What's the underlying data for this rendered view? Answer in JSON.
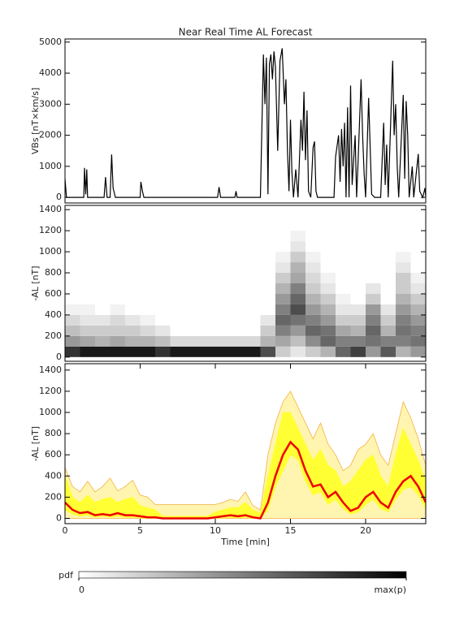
{
  "chart_data": [
    {
      "type": "line",
      "title": "Near Real Time AL Forecast",
      "ylabel": "VBs [nT×km/s]",
      "color": "#000000",
      "xlim": [
        0,
        24
      ],
      "ylim": [
        -180,
        5100
      ],
      "yticks": [
        0,
        1000,
        2000,
        3000,
        4000,
        5000
      ],
      "x": [
        0,
        0.1,
        1.25,
        1.3,
        1.38,
        1.45,
        1.5,
        2.6,
        2.7,
        2.8,
        3.0,
        3.1,
        3.2,
        3.35,
        5.0,
        5.05,
        5.15,
        5.25,
        10.15,
        10.25,
        10.35,
        11.3,
        11.38,
        11.45,
        13.0,
        13.2,
        13.3,
        13.4,
        13.5,
        13.6,
        13.7,
        13.8,
        13.9,
        14.0,
        14.15,
        14.3,
        14.45,
        14.6,
        14.7,
        14.8,
        14.9,
        15.0,
        15.1,
        15.2,
        15.35,
        15.5,
        15.7,
        15.8,
        15.9,
        16.0,
        16.1,
        16.2,
        16.35,
        16.5,
        16.6,
        16.7,
        16.8,
        17.9,
        18.0,
        18.2,
        18.3,
        18.4,
        18.5,
        18.6,
        18.7,
        18.8,
        18.9,
        19.0,
        19.1,
        19.3,
        19.4,
        19.5,
        19.7,
        19.8,
        19.9,
        20.0,
        20.2,
        20.4,
        20.6,
        21.0,
        21.2,
        21.3,
        21.4,
        21.5,
        21.8,
        21.9,
        22.0,
        22.1,
        22.2,
        22.5,
        22.6,
        22.7,
        22.8,
        22.9,
        23.1,
        23.2,
        23.5,
        23.6,
        23.8,
        23.95,
        24
      ],
      "values": [
        600,
        0,
        0,
        950,
        100,
        900,
        0,
        0,
        650,
        0,
        0,
        1380,
        300,
        0,
        0,
        500,
        200,
        0,
        0,
        330,
        0,
        0,
        200,
        0,
        0,
        4600,
        3000,
        4500,
        100,
        4300,
        4600,
        3800,
        4700,
        4200,
        1500,
        4400,
        4800,
        3000,
        3800,
        1500,
        200,
        2500,
        800,
        0,
        900,
        0,
        2500,
        1500,
        3400,
        1200,
        2800,
        200,
        0,
        1600,
        1800,
        200,
        0,
        0,
        1300,
        2000,
        500,
        2200,
        1000,
        2400,
        0,
        2900,
        0,
        3600,
        400,
        2000,
        0,
        1200,
        3800,
        2000,
        800,
        0,
        3200,
        100,
        0,
        0,
        2400,
        400,
        1700,
        0,
        4400,
        2000,
        3000,
        1000,
        0,
        3300,
        600,
        3100,
        2000,
        0,
        1000,
        0,
        1400,
        200,
        0,
        300,
        0
      ]
    },
    {
      "type": "heatmap",
      "ylabel": "-AL [nT]",
      "xlim": [
        0,
        24
      ],
      "ylim": [
        -40,
        1440
      ],
      "yticks": [
        0,
        200,
        400,
        600,
        800,
        1000,
        1200,
        1400
      ],
      "xbins": [
        0,
        1,
        2,
        3,
        4,
        5,
        6,
        7,
        8,
        9,
        10,
        11,
        12,
        13,
        14,
        15,
        16,
        17,
        18,
        19,
        20,
        21,
        22,
        23,
        24
      ],
      "ybins": [
        0,
        100,
        200,
        300,
        400,
        500,
        600,
        700,
        800,
        900,
        1000,
        1100,
        1200
      ],
      "z": [
        [
          0.8,
          0.4,
          0.25,
          0.15,
          0.05,
          0,
          0,
          0,
          0,
          0,
          0,
          0
        ],
        [
          0.9,
          0.35,
          0.2,
          0.1,
          0.05,
          0,
          0,
          0,
          0,
          0,
          0,
          0
        ],
        [
          0.9,
          0.3,
          0.2,
          0.1,
          0,
          0,
          0,
          0,
          0,
          0,
          0,
          0
        ],
        [
          0.9,
          0.35,
          0.2,
          0.15,
          0.05,
          0,
          0,
          0,
          0,
          0,
          0,
          0
        ],
        [
          0.9,
          0.3,
          0.2,
          0.1,
          0,
          0,
          0,
          0,
          0,
          0,
          0,
          0
        ],
        [
          0.9,
          0.3,
          0.15,
          0.05,
          0,
          0,
          0,
          0,
          0,
          0,
          0,
          0
        ],
        [
          0.8,
          0.25,
          0.1,
          0,
          0,
          0,
          0,
          0,
          0,
          0,
          0,
          0
        ],
        [
          0.9,
          0.15,
          0,
          0,
          0,
          0,
          0,
          0,
          0,
          0,
          0,
          0
        ],
        [
          0.9,
          0.15,
          0,
          0,
          0,
          0,
          0,
          0,
          0,
          0,
          0,
          0
        ],
        [
          0.9,
          0.15,
          0,
          0,
          0,
          0,
          0,
          0,
          0,
          0,
          0,
          0
        ],
        [
          0.9,
          0.15,
          0,
          0,
          0,
          0,
          0,
          0,
          0,
          0,
          0,
          0
        ],
        [
          0.9,
          0.15,
          0,
          0,
          0,
          0,
          0,
          0,
          0,
          0,
          0,
          0
        ],
        [
          0.9,
          0.15,
          0,
          0,
          0,
          0,
          0,
          0,
          0,
          0,
          0,
          0
        ],
        [
          0.7,
          0.3,
          0.2,
          0.1,
          0,
          0,
          0,
          0,
          0,
          0,
          0,
          0
        ],
        [
          0.2,
          0.35,
          0.5,
          0.6,
          0.5,
          0.4,
          0.3,
          0.2,
          0.1,
          0.05,
          0,
          0
        ],
        [
          0.1,
          0.25,
          0.4,
          0.55,
          0.7,
          0.6,
          0.5,
          0.35,
          0.3,
          0.2,
          0.1,
          0.05
        ],
        [
          0.2,
          0.45,
          0.6,
          0.5,
          0.4,
          0.3,
          0.2,
          0.15,
          0.1,
          0.05,
          0,
          0
        ],
        [
          0.3,
          0.6,
          0.55,
          0.4,
          0.3,
          0.2,
          0.1,
          0.05,
          0,
          0,
          0,
          0
        ],
        [
          0.6,
          0.5,
          0.35,
          0.2,
          0.1,
          0.05,
          0,
          0,
          0,
          0,
          0,
          0
        ],
        [
          0.75,
          0.5,
          0.3,
          0.2,
          0.1,
          0,
          0,
          0,
          0,
          0,
          0,
          0
        ],
        [
          0.4,
          0.55,
          0.6,
          0.5,
          0.4,
          0.2,
          0.1,
          0,
          0,
          0,
          0,
          0
        ],
        [
          0.65,
          0.5,
          0.3,
          0.2,
          0.1,
          0,
          0,
          0,
          0,
          0,
          0,
          0
        ],
        [
          0.3,
          0.5,
          0.55,
          0.5,
          0.4,
          0.3,
          0.2,
          0.2,
          0.1,
          0.05,
          0,
          0
        ],
        [
          0.4,
          0.55,
          0.5,
          0.4,
          0.3,
          0.2,
          0.1,
          0.05,
          0,
          0,
          0,
          0
        ]
      ],
      "colorbar": {
        "label": "pdf",
        "ticks": [
          0,
          {
            "value": 1,
            "label": "max(p)"
          }
        ]
      }
    },
    {
      "type": "band",
      "ylabel": "-AL [nT]",
      "xlabel": "Time [min]",
      "xlim": [
        0,
        24
      ],
      "xticks": [
        0,
        5,
        10,
        15,
        20
      ],
      "ylim": [
        -50,
        1460
      ],
      "yticks": [
        0,
        200,
        400,
        600,
        800,
        1000,
        1200,
        1400
      ],
      "x": [
        0,
        0.5,
        1,
        1.5,
        2,
        2.5,
        3,
        3.5,
        4,
        4.5,
        5,
        5.5,
        6,
        6.5,
        7,
        7.5,
        8,
        8.5,
        9,
        9.5,
        10,
        10.5,
        11,
        11.5,
        12,
        12.5,
        13,
        13.5,
        14,
        14.5,
        15,
        15.5,
        16,
        16.5,
        17,
        17.5,
        18,
        18.5,
        19,
        19.5,
        20,
        20.5,
        21,
        21.5,
        22,
        22.5,
        23,
        23.5,
        24
      ],
      "bands": [
        {
          "color": "#fff5b0",
          "edge": "#f5b041",
          "lower": [
            0,
            0,
            0,
            0,
            0,
            0,
            0,
            0,
            0,
            0,
            0,
            0,
            0,
            0,
            0,
            0,
            0,
            0,
            0,
            0,
            0,
            0,
            0,
            0,
            0,
            0,
            0,
            0,
            0,
            0,
            0,
            0,
            0,
            0,
            0,
            0,
            0,
            0,
            0,
            0,
            0,
            0,
            0,
            0,
            0,
            0,
            0,
            0,
            0
          ],
          "upper": [
            480,
            300,
            250,
            350,
            250,
            300,
            380,
            260,
            300,
            360,
            220,
            200,
            130,
            130,
            130,
            130,
            130,
            130,
            130,
            130,
            130,
            150,
            180,
            160,
            250,
            120,
            80,
            600,
            900,
            1100,
            1200,
            1050,
            900,
            750,
            900,
            700,
            600,
            450,
            500,
            650,
            700,
            800,
            600,
            500,
            800,
            1100,
            950,
            750,
            500
          ]
        },
        {
          "color": "#ffff33",
          "edge": "#ffff33",
          "lower": [
            80,
            40,
            20,
            30,
            10,
            20,
            10,
            20,
            10,
            10,
            5,
            0,
            0,
            0,
            0,
            0,
            0,
            0,
            0,
            0,
            0,
            5,
            10,
            5,
            10,
            0,
            0,
            80,
            300,
            450,
            600,
            550,
            350,
            220,
            250,
            130,
            180,
            90,
            40,
            60,
            130,
            180,
            90,
            60,
            180,
            270,
            300,
            220,
            90
          ],
          "upper": [
            400,
            200,
            150,
            220,
            150,
            180,
            200,
            150,
            180,
            200,
            120,
            100,
            80,
            20,
            20,
            20,
            20,
            20,
            20,
            20,
            60,
            80,
            100,
            100,
            150,
            80,
            50,
            400,
            700,
            1000,
            1000,
            850,
            700,
            550,
            650,
            500,
            450,
            300,
            350,
            450,
            550,
            600,
            400,
            300,
            600,
            850,
            700,
            550,
            350
          ]
        }
      ],
      "line": {
        "color": "#ee0000",
        "values": [
          150,
          80,
          50,
          60,
          30,
          40,
          30,
          50,
          30,
          30,
          20,
          10,
          10,
          0,
          0,
          0,
          0,
          0,
          0,
          0,
          10,
          20,
          30,
          20,
          30,
          10,
          0,
          150,
          400,
          600,
          720,
          650,
          450,
          300,
          320,
          200,
          250,
          150,
          70,
          100,
          200,
          250,
          150,
          100,
          250,
          350,
          400,
          300,
          150
        ]
      }
    }
  ]
}
